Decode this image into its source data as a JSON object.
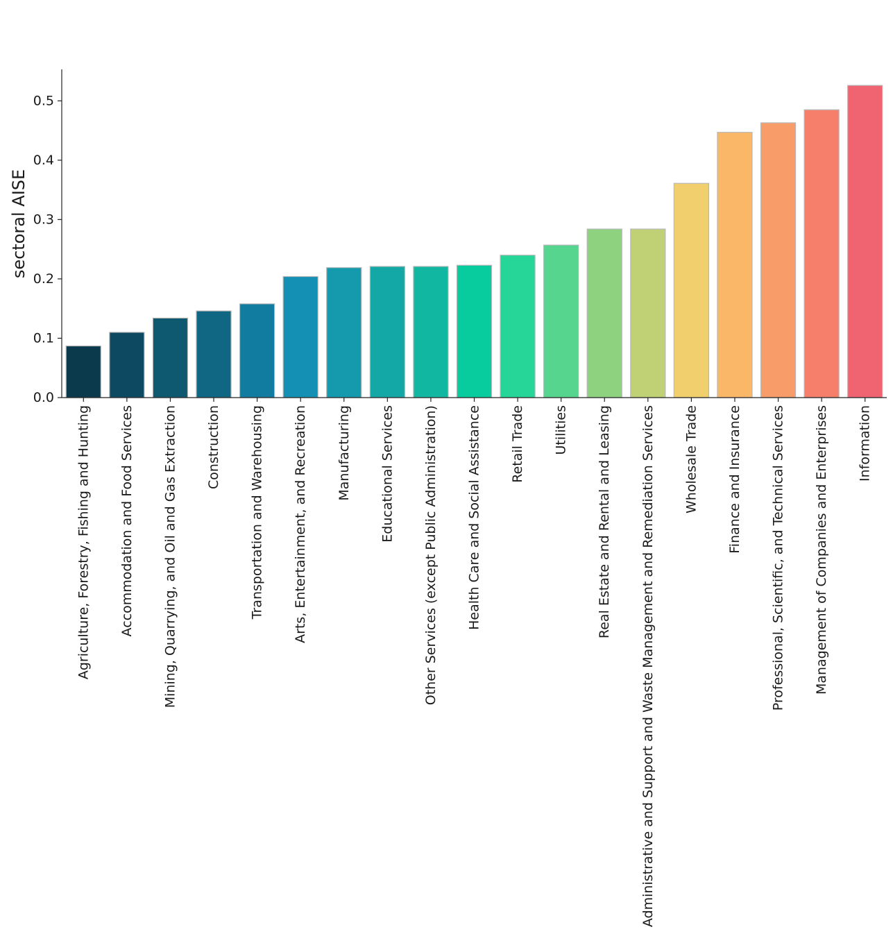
{
  "chart_data": {
    "type": "bar",
    "title": "",
    "xlabel": "",
    "ylabel": "sectoral AISE",
    "ylim": [
      0,
      0.553
    ],
    "yticks": [
      0.0,
      0.1,
      0.2,
      0.3,
      0.4,
      0.5
    ],
    "ytick_labels": [
      "0.0",
      "0.1",
      "0.2",
      "0.3",
      "0.4",
      "0.5"
    ],
    "grid": false,
    "categories": [
      "Agriculture, Forestry, Fishing and Hunting",
      "Accommodation and Food Services",
      "Mining, Quarrying, and Oil and Gas Extraction",
      "Construction",
      "Transportation and Warehousing",
      "Arts, Entertainment, and Recreation",
      "Manufacturing",
      "Educational Services",
      "Other Services (except Public Administration)",
      "Health Care and Social Assistance",
      "Retail Trade",
      "Utilities",
      "Real Estate and Rental and Leasing",
      "Administrative and Support and Waste Management and Remediation Services",
      "Wholesale Trade",
      "Finance and Insurance",
      "Professional, Scientific, and Technical Services",
      "Management of Companies and Enterprises",
      "Information"
    ],
    "values": [
      0.087,
      0.11,
      0.134,
      0.146,
      0.158,
      0.204,
      0.219,
      0.221,
      0.221,
      0.223,
      0.24,
      0.257,
      0.284,
      0.284,
      0.361,
      0.447,
      0.463,
      0.485,
      0.526
    ],
    "colors": [
      "#0b3a4c",
      "#0d4a61",
      "#0e5870",
      "#0f6784",
      "#117c9f",
      "#1490b4",
      "#1599ad",
      "#13a8a6",
      "#12b7a2",
      "#08cc9e",
      "#25d698",
      "#55d58e",
      "#8ed280",
      "#c0d075",
      "#f0cf6c",
      "#f9b767",
      "#f89c6a",
      "#f57f6b",
      "#ef6470"
    ],
    "bar_edge_color": "#b8b8b8",
    "axis_color": "#222222"
  }
}
